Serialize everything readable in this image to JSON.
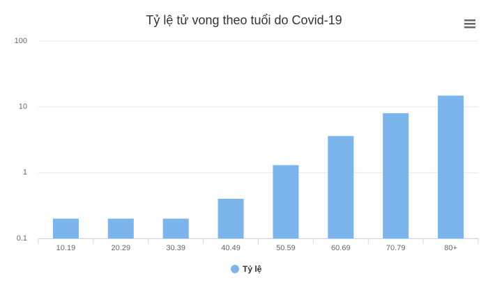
{
  "chart_data": {
    "type": "bar",
    "title": "Tỷ lệ tử vong theo tuổi do Covid-19",
    "categories": [
      "10.19",
      "20.29",
      "30.39",
      "40.49",
      "50.59",
      "60.69",
      "70.79",
      "80+"
    ],
    "series": [
      {
        "name": "Tỷ lệ",
        "color": "#7cb5ec",
        "values": [
          0.2,
          0.2,
          0.2,
          0.4,
          1.3,
          3.6,
          8.0,
          14.8
        ]
      }
    ],
    "ylim": [
      0.1,
      100
    ],
    "yticks": [
      0.1,
      1,
      10,
      100
    ],
    "log_scale": true,
    "grid": true,
    "legend": "bottom"
  }
}
